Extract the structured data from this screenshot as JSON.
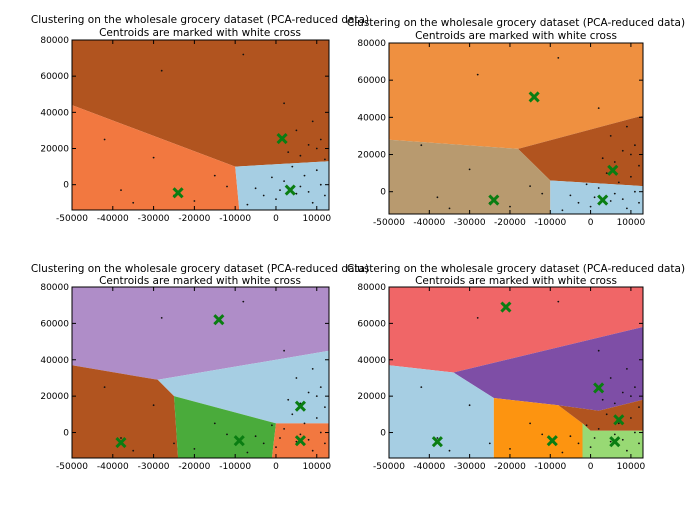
{
  "chart_data": [
    {
      "type": "scatter",
      "title": "Clustering on the wholesale grocery dataset (PCA-reduced data)",
      "subtitle": "Centroids are marked with white cross",
      "xlim": [
        -50000,
        13000
      ],
      "ylim": [
        -14000,
        80000
      ],
      "xticks": [
        -50000,
        -40000,
        -30000,
        -20000,
        -10000,
        0,
        10000
      ],
      "yticks": [
        0,
        20000,
        40000,
        60000,
        80000
      ],
      "grid": false,
      "regions": [
        {
          "color": "#b1541f",
          "polygon": [
            [
              -50000,
              44000
            ],
            [
              -10000,
              10000
            ],
            [
              13000,
              13000
            ],
            [
              13000,
              80000
            ],
            [
              -50000,
              80000
            ]
          ]
        },
        {
          "color": "#f27840",
          "polygon": [
            [
              -50000,
              -14000
            ],
            [
              -9000,
              -14000
            ],
            [
              -10000,
              10000
            ],
            [
              -50000,
              44000
            ]
          ]
        },
        {
          "color": "#a6cee3",
          "polygon": [
            [
              -9000,
              -14000
            ],
            [
              13000,
              -14000
            ],
            [
              13000,
              13000
            ],
            [
              -10000,
              10000
            ]
          ]
        }
      ],
      "centroids": [
        [
          1500,
          25500
        ],
        [
          -24000,
          -4500
        ],
        [
          3500,
          -3000
        ]
      ],
      "points": [
        [
          -42000,
          25000
        ],
        [
          -30000,
          15000
        ],
        [
          -28000,
          63000
        ],
        [
          -20000,
          -9000
        ],
        [
          -35000,
          -10000
        ],
        [
          -15000,
          5000
        ],
        [
          -8000,
          72000
        ],
        [
          2000,
          45000
        ],
        [
          5000,
          30000
        ],
        [
          8000,
          22000
        ],
        [
          10000,
          20000
        ],
        [
          3000,
          18000
        ],
        [
          -5000,
          -2000
        ],
        [
          0,
          -8000
        ],
        [
          5000,
          -5000
        ],
        [
          9000,
          -10000
        ],
        [
          11000,
          0
        ],
        [
          7000,
          5000
        ],
        [
          2000,
          2000
        ],
        [
          -3000,
          -6000
        ],
        [
          6000,
          -1000
        ],
        [
          8000,
          -4000
        ],
        [
          10000,
          8000
        ],
        [
          12000,
          -6000
        ],
        [
          -7000,
          -11000
        ],
        [
          4000,
          10000
        ],
        [
          1000,
          -3000
        ],
        [
          -1000,
          4000
        ],
        [
          11000,
          25000
        ],
        [
          9000,
          35000
        ],
        [
          -25000,
          -6000
        ],
        [
          -38000,
          -3000
        ],
        [
          -12000,
          -1000
        ],
        [
          12000,
          14000
        ],
        [
          6000,
          16000
        ]
      ]
    },
    {
      "type": "scatter",
      "title": "Clustering on the wholesale grocery dataset (PCA-reduced data)",
      "subtitle": "Centroids are marked with white cross",
      "xlim": [
        -50000,
        13000
      ],
      "ylim": [
        -12000,
        80000
      ],
      "xticks": [
        -50000,
        -40000,
        -30000,
        -20000,
        -10000,
        0,
        10000
      ],
      "yticks": [
        0,
        20000,
        40000,
        60000,
        80000
      ],
      "grid": false,
      "regions": [
        {
          "color": "#ef9040",
          "polygon": [
            [
              -50000,
              28000
            ],
            [
              -18000,
              23000
            ],
            [
              13000,
              41000
            ],
            [
              13000,
              80000
            ],
            [
              -50000,
              80000
            ]
          ]
        },
        {
          "color": "#b1541f",
          "polygon": [
            [
              -18000,
              23000
            ],
            [
              -10000,
              6000
            ],
            [
              13000,
              3000
            ],
            [
              13000,
              41000
            ]
          ]
        },
        {
          "color": "#b89a6f",
          "polygon": [
            [
              -50000,
              -12000
            ],
            [
              -10000,
              -12000
            ],
            [
              -10000,
              6000
            ],
            [
              -18000,
              23000
            ],
            [
              -50000,
              28000
            ]
          ]
        },
        {
          "color": "#a6cee3",
          "polygon": [
            [
              -10000,
              -12000
            ],
            [
              13000,
              -12000
            ],
            [
              13000,
              3000
            ],
            [
              -10000,
              6000
            ]
          ]
        }
      ],
      "centroids": [
        [
          -14000,
          51000
        ],
        [
          5500,
          11500
        ],
        [
          -24000,
          -4500
        ],
        [
          3000,
          -4500
        ]
      ],
      "points": [
        [
          -42000,
          25000
        ],
        [
          -30000,
          12000
        ],
        [
          -28000,
          63000
        ],
        [
          -20000,
          -8000
        ],
        [
          -35000,
          -9000
        ],
        [
          -15000,
          3000
        ],
        [
          -8000,
          72000
        ],
        [
          2000,
          45000
        ],
        [
          5000,
          30000
        ],
        [
          8000,
          22000
        ],
        [
          10000,
          20000
        ],
        [
          3000,
          18000
        ],
        [
          -5000,
          -2000
        ],
        [
          0,
          -8000
        ],
        [
          5000,
          -5000
        ],
        [
          9000,
          -9000
        ],
        [
          11000,
          0
        ],
        [
          7000,
          5000
        ],
        [
          2000,
          2000
        ],
        [
          -3000,
          -6000
        ],
        [
          6000,
          -1000
        ],
        [
          8000,
          -4000
        ],
        [
          10000,
          8000
        ],
        [
          12000,
          -6000
        ],
        [
          -7000,
          -10000
        ],
        [
          4000,
          10000
        ],
        [
          1000,
          -3000
        ],
        [
          -1000,
          4000
        ],
        [
          11000,
          25000
        ],
        [
          9000,
          35000
        ],
        [
          -25000,
          -6000
        ],
        [
          -38000,
          -3000
        ],
        [
          -12000,
          -1000
        ],
        [
          12000,
          14000
        ],
        [
          6000,
          16000
        ]
      ]
    },
    {
      "type": "scatter",
      "title": "Clustering on the wholesale grocery dataset (PCA-reduced data)",
      "subtitle": "Centroids are marked with white cross",
      "xlim": [
        -50000,
        13000
      ],
      "ylim": [
        -14000,
        80000
      ],
      "xticks": [
        -50000,
        -40000,
        -30000,
        -20000,
        -10000,
        0,
        10000
      ],
      "yticks": [
        0,
        20000,
        40000,
        60000,
        80000
      ],
      "grid": false,
      "regions": [
        {
          "color": "#af8dc8",
          "polygon": [
            [
              -50000,
              37000
            ],
            [
              -29000,
              29000
            ],
            [
              13000,
              45000
            ],
            [
              13000,
              80000
            ],
            [
              -50000,
              80000
            ]
          ]
        },
        {
          "color": "#a6cee3",
          "polygon": [
            [
              -29000,
              29000
            ],
            [
              -25000,
              20000
            ],
            [
              0,
              5000
            ],
            [
              13000,
              5000
            ],
            [
              13000,
              45000
            ]
          ]
        },
        {
          "color": "#b1541f",
          "polygon": [
            [
              -50000,
              -14000
            ],
            [
              -24000,
              -14000
            ],
            [
              -25000,
              20000
            ],
            [
              -29000,
              29000
            ],
            [
              -50000,
              37000
            ]
          ]
        },
        {
          "color": "#4aab3b",
          "polygon": [
            [
              -24000,
              -14000
            ],
            [
              -1000,
              -14000
            ],
            [
              0,
              5000
            ],
            [
              -25000,
              20000
            ]
          ]
        },
        {
          "color": "#f27840",
          "polygon": [
            [
              -1000,
              -14000
            ],
            [
              13000,
              -14000
            ],
            [
              13000,
              5000
            ],
            [
              0,
              5000
            ]
          ]
        }
      ],
      "centroids": [
        [
          -14000,
          62000
        ],
        [
          6000,
          14500
        ],
        [
          -38000,
          -5500
        ],
        [
          -9000,
          -4500
        ],
        [
          6000,
          -4500
        ]
      ],
      "points": [
        [
          -42000,
          25000
        ],
        [
          -30000,
          15000
        ],
        [
          -28000,
          63000
        ],
        [
          -20000,
          -9000
        ],
        [
          -35000,
          -10000
        ],
        [
          -15000,
          5000
        ],
        [
          -8000,
          72000
        ],
        [
          2000,
          45000
        ],
        [
          5000,
          30000
        ],
        [
          8000,
          22000
        ],
        [
          10000,
          20000
        ],
        [
          3000,
          18000
        ],
        [
          -5000,
          -2000
        ],
        [
          0,
          -8000
        ],
        [
          5000,
          -5000
        ],
        [
          9000,
          -10000
        ],
        [
          11000,
          0
        ],
        [
          7000,
          5000
        ],
        [
          2000,
          2000
        ],
        [
          -3000,
          -6000
        ],
        [
          6000,
          -1000
        ],
        [
          8000,
          -4000
        ],
        [
          10000,
          8000
        ],
        [
          12000,
          -6000
        ],
        [
          -7000,
          -11000
        ],
        [
          4000,
          10000
        ],
        [
          1000,
          -3000
        ],
        [
          -1000,
          4000
        ],
        [
          11000,
          25000
        ],
        [
          9000,
          35000
        ],
        [
          -25000,
          -6000
        ],
        [
          -38000,
          -3000
        ],
        [
          -12000,
          -1000
        ],
        [
          12000,
          14000
        ],
        [
          6000,
          16000
        ]
      ]
    },
    {
      "type": "scatter",
      "title": "Clustering on the wholesale grocery dataset (PCA-reduced data)",
      "subtitle": "Centroids are marked with white cross",
      "xlim": [
        -50000,
        13000
      ],
      "ylim": [
        -14000,
        80000
      ],
      "xticks": [
        -50000,
        -40000,
        -30000,
        -20000,
        -10000,
        0,
        10000
      ],
      "yticks": [
        0,
        20000,
        40000,
        60000,
        80000
      ],
      "grid": false,
      "regions": [
        {
          "color": "#f06667",
          "polygon": [
            [
              -50000,
              37000
            ],
            [
              -34000,
              33000
            ],
            [
              13000,
              58000
            ],
            [
              13000,
              80000
            ],
            [
              -50000,
              80000
            ]
          ]
        },
        {
          "color": "#7e4ea6",
          "polygon": [
            [
              -34000,
              33000
            ],
            [
              -24000,
              19000
            ],
            [
              -8000,
              15000
            ],
            [
              2000,
              12000
            ],
            [
              13000,
              18000
            ],
            [
              13000,
              58000
            ]
          ]
        },
        {
          "color": "#a6cee3",
          "polygon": [
            [
              -50000,
              -14000
            ],
            [
              -24000,
              -14000
            ],
            [
              -24000,
              19000
            ],
            [
              -34000,
              33000
            ],
            [
              -50000,
              37000
            ]
          ]
        },
        {
          "color": "#fd9410",
          "polygon": [
            [
              -24000,
              -14000
            ],
            [
              -2000,
              -14000
            ],
            [
              -2000,
              5000
            ],
            [
              -8000,
              15000
            ],
            [
              -24000,
              19000
            ]
          ]
        },
        {
          "color": "#b1541f",
          "polygon": [
            [
              -8000,
              15000
            ],
            [
              2000,
              12000
            ],
            [
              13000,
              18000
            ],
            [
              13000,
              1000
            ],
            [
              0,
              1000
            ],
            [
              -2000,
              5000
            ]
          ]
        },
        {
          "color": "#98d974",
          "polygon": [
            [
              -2000,
              -14000
            ],
            [
              13000,
              -14000
            ],
            [
              13000,
              1000
            ],
            [
              0,
              1000
            ],
            [
              -2000,
              5000
            ]
          ]
        }
      ],
      "centroids": [
        [
          -21000,
          69000
        ],
        [
          2000,
          24500
        ],
        [
          7000,
          7000
        ],
        [
          -38000,
          -5000
        ],
        [
          -9500,
          -4500
        ],
        [
          6000,
          -5000
        ]
      ],
      "points": [
        [
          -42000,
          25000
        ],
        [
          -30000,
          15000
        ],
        [
          -28000,
          63000
        ],
        [
          -20000,
          -9000
        ],
        [
          -35000,
          -10000
        ],
        [
          -15000,
          5000
        ],
        [
          -8000,
          72000
        ],
        [
          2000,
          45000
        ],
        [
          5000,
          30000
        ],
        [
          8000,
          22000
        ],
        [
          10000,
          20000
        ],
        [
          3000,
          18000
        ],
        [
          -5000,
          -2000
        ],
        [
          0,
          -8000
        ],
        [
          5000,
          -5000
        ],
        [
          9000,
          -10000
        ],
        [
          11000,
          0
        ],
        [
          7000,
          5000
        ],
        [
          2000,
          2000
        ],
        [
          -3000,
          -6000
        ],
        [
          6000,
          -1000
        ],
        [
          8000,
          -4000
        ],
        [
          10000,
          8000
        ],
        [
          12000,
          -6000
        ],
        [
          -7000,
          -11000
        ],
        [
          4000,
          10000
        ],
        [
          1000,
          -3000
        ],
        [
          -1000,
          4000
        ],
        [
          11000,
          25000
        ],
        [
          9000,
          35000
        ],
        [
          -25000,
          -6000
        ],
        [
          -38000,
          -3000
        ],
        [
          -12000,
          -1000
        ],
        [
          12000,
          14000
        ],
        [
          6000,
          16000
        ]
      ]
    }
  ],
  "colors": {
    "centroid": "#0a7d12",
    "point": "#111111",
    "axes": "#000000"
  }
}
